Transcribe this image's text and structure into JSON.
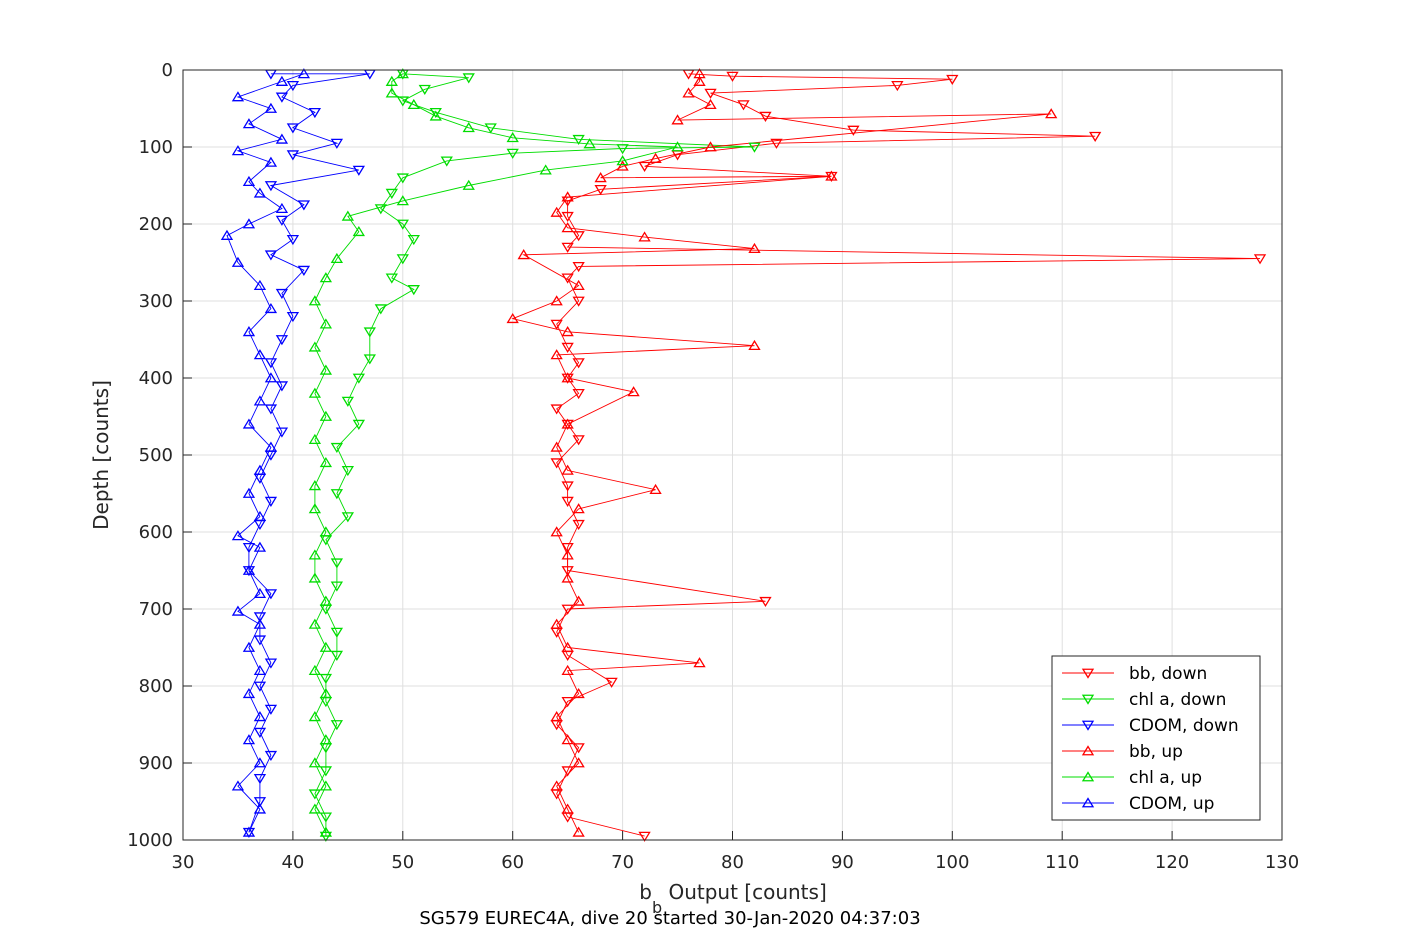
{
  "chart_data": {
    "type": "scatter",
    "title": "",
    "caption": "SG579 EUREC4A, dive 20 started 30-Jan-2020 04:37:03",
    "xlabel": "b_b Output [counts]",
    "xlabel_main": "b",
    "xlabel_sub": "b",
    "xlabel_rest": " Output [counts]",
    "ylabel": "Depth [counts]",
    "xlim": [
      30,
      130
    ],
    "ylim": [
      0,
      1000
    ],
    "y_reversed": true,
    "grid": true,
    "legend_position": "bottom-right",
    "x_ticks": [
      "30",
      "40",
      "50",
      "60",
      "70",
      "80",
      "90",
      "100",
      "110",
      "120",
      "130"
    ],
    "y_ticks": [
      "0",
      "100",
      "200",
      "300",
      "400",
      "500",
      "600",
      "700",
      "800",
      "900",
      "1000"
    ],
    "series": [
      {
        "name": "bb, down",
        "color": "#ff0000",
        "marker": "triangle-down",
        "points": [
          [
            76,
            5
          ],
          [
            80,
            8
          ],
          [
            100,
            12
          ],
          [
            95,
            20
          ],
          [
            78,
            30
          ],
          [
            81,
            45
          ],
          [
            83,
            60
          ],
          [
            91,
            78
          ],
          [
            113,
            86
          ],
          [
            84,
            95
          ],
          [
            75,
            110
          ],
          [
            72,
            125
          ],
          [
            89,
            138
          ],
          [
            68,
            155
          ],
          [
            65,
            170
          ],
          [
            65,
            190
          ],
          [
            66,
            215
          ],
          [
            65,
            230
          ],
          [
            128,
            245
          ],
          [
            66,
            255
          ],
          [
            65,
            270
          ],
          [
            66,
            300
          ],
          [
            64,
            330
          ],
          [
            65,
            360
          ],
          [
            66,
            380
          ],
          [
            65,
            400
          ],
          [
            66,
            420
          ],
          [
            64,
            440
          ],
          [
            65,
            460
          ],
          [
            66,
            480
          ],
          [
            64,
            510
          ],
          [
            65,
            540
          ],
          [
            65,
            560
          ],
          [
            66,
            590
          ],
          [
            65,
            620
          ],
          [
            65,
            650
          ],
          [
            83,
            690
          ],
          [
            65,
            700
          ],
          [
            64,
            730
          ],
          [
            65,
            760
          ],
          [
            69,
            795
          ],
          [
            65,
            820
          ],
          [
            64,
            850
          ],
          [
            66,
            880
          ],
          [
            65,
            910
          ],
          [
            64,
            940
          ],
          [
            65,
            970
          ],
          [
            72,
            995
          ]
        ]
      },
      {
        "name": "chl a, down",
        "color": "#00dd00",
        "marker": "triangle-down",
        "points": [
          [
            50,
            5
          ],
          [
            56,
            10
          ],
          [
            52,
            25
          ],
          [
            50,
            40
          ],
          [
            53,
            55
          ],
          [
            58,
            75
          ],
          [
            66,
            90
          ],
          [
            82,
            100
          ],
          [
            70,
            102
          ],
          [
            60,
            108
          ],
          [
            54,
            118
          ],
          [
            50,
            140
          ],
          [
            49,
            160
          ],
          [
            48,
            180
          ],
          [
            50,
            200
          ],
          [
            51,
            220
          ],
          [
            50,
            245
          ],
          [
            49,
            270
          ],
          [
            51,
            285
          ],
          [
            48,
            310
          ],
          [
            47,
            340
          ],
          [
            47,
            375
          ],
          [
            46,
            400
          ],
          [
            45,
            430
          ],
          [
            46,
            460
          ],
          [
            44,
            490
          ],
          [
            45,
            520
          ],
          [
            44,
            550
          ],
          [
            45,
            580
          ],
          [
            43,
            610
          ],
          [
            44,
            640
          ],
          [
            44,
            670
          ],
          [
            43,
            700
          ],
          [
            44,
            730
          ],
          [
            44,
            760
          ],
          [
            43,
            790
          ],
          [
            43,
            820
          ],
          [
            44,
            850
          ],
          [
            43,
            880
          ],
          [
            43,
            910
          ],
          [
            42,
            940
          ],
          [
            43,
            970
          ],
          [
            43,
            995
          ]
        ]
      },
      {
        "name": "CDOM, down",
        "color": "#0000ff",
        "marker": "triangle-down",
        "points": [
          [
            38,
            5
          ],
          [
            47,
            5
          ],
          [
            40,
            20
          ],
          [
            39,
            35
          ],
          [
            42,
            55
          ],
          [
            40,
            75
          ],
          [
            44,
            95
          ],
          [
            40,
            110
          ],
          [
            46,
            130
          ],
          [
            38,
            150
          ],
          [
            41,
            175
          ],
          [
            39,
            195
          ],
          [
            40,
            220
          ],
          [
            38,
            240
          ],
          [
            41,
            260
          ],
          [
            39,
            290
          ],
          [
            40,
            320
          ],
          [
            39,
            350
          ],
          [
            38,
            380
          ],
          [
            39,
            410
          ],
          [
            38,
            440
          ],
          [
            39,
            470
          ],
          [
            38,
            500
          ],
          [
            37,
            530
          ],
          [
            38,
            560
          ],
          [
            37,
            590
          ],
          [
            36,
            620
          ],
          [
            36,
            650
          ],
          [
            38,
            680
          ],
          [
            37,
            710
          ],
          [
            37,
            740
          ],
          [
            38,
            770
          ],
          [
            37,
            800
          ],
          [
            38,
            830
          ],
          [
            37,
            860
          ],
          [
            38,
            890
          ],
          [
            37,
            920
          ],
          [
            37,
            950
          ],
          [
            36,
            990
          ]
        ]
      },
      {
        "name": "bb, up",
        "color": "#ff0000",
        "marker": "triangle-up",
        "points": [
          [
            66,
            990
          ],
          [
            65,
            960
          ],
          [
            64,
            930
          ],
          [
            66,
            900
          ],
          [
            65,
            870
          ],
          [
            64,
            840
          ],
          [
            66,
            810
          ],
          [
            65,
            780
          ],
          [
            77,
            770
          ],
          [
            65,
            750
          ],
          [
            64,
            720
          ],
          [
            66,
            690
          ],
          [
            65,
            660
          ],
          [
            65,
            630
          ],
          [
            64,
            600
          ],
          [
            66,
            570
          ],
          [
            73,
            545
          ],
          [
            65,
            520
          ],
          [
            64,
            490
          ],
          [
            65,
            460
          ],
          [
            71,
            418
          ],
          [
            65,
            400
          ],
          [
            64,
            370
          ],
          [
            82,
            358
          ],
          [
            65,
            340
          ],
          [
            60,
            323
          ],
          [
            64,
            300
          ],
          [
            66,
            280
          ],
          [
            61,
            240
          ],
          [
            82,
            232
          ],
          [
            72,
            217
          ],
          [
            65,
            205
          ],
          [
            64,
            185
          ],
          [
            65,
            165
          ],
          [
            89,
            138
          ],
          [
            68,
            140
          ],
          [
            70,
            125
          ],
          [
            73,
            115
          ],
          [
            78,
            100
          ],
          [
            109,
            57
          ],
          [
            75,
            65
          ],
          [
            78,
            45
          ],
          [
            76,
            30
          ],
          [
            77,
            15
          ],
          [
            77,
            5
          ]
        ]
      },
      {
        "name": "chl a, up",
        "color": "#00dd00",
        "marker": "triangle-up",
        "points": [
          [
            43,
            990
          ],
          [
            42,
            960
          ],
          [
            43,
            930
          ],
          [
            42,
            900
          ],
          [
            43,
            870
          ],
          [
            42,
            840
          ],
          [
            43,
            810
          ],
          [
            42,
            780
          ],
          [
            43,
            750
          ],
          [
            42,
            720
          ],
          [
            43,
            690
          ],
          [
            42,
            660
          ],
          [
            42,
            630
          ],
          [
            43,
            600
          ],
          [
            42,
            570
          ],
          [
            42,
            540
          ],
          [
            43,
            510
          ],
          [
            42,
            480
          ],
          [
            43,
            450
          ],
          [
            42,
            420
          ],
          [
            43,
            390
          ],
          [
            42,
            360
          ],
          [
            43,
            330
          ],
          [
            42,
            300
          ],
          [
            43,
            270
          ],
          [
            44,
            245
          ],
          [
            46,
            210
          ],
          [
            45,
            190
          ],
          [
            50,
            170
          ],
          [
            56,
            150
          ],
          [
            63,
            130
          ],
          [
            70,
            118
          ],
          [
            75,
            100
          ],
          [
            67,
            96
          ],
          [
            60,
            88
          ],
          [
            56,
            75
          ],
          [
            53,
            60
          ],
          [
            51,
            45
          ],
          [
            49,
            30
          ],
          [
            49,
            15
          ],
          [
            50,
            5
          ]
        ]
      },
      {
        "name": "CDOM, up",
        "color": "#0000ff",
        "marker": "triangle-up",
        "points": [
          [
            36,
            990
          ],
          [
            37,
            960
          ],
          [
            35,
            930
          ],
          [
            37,
            900
          ],
          [
            36,
            870
          ],
          [
            37,
            840
          ],
          [
            36,
            810
          ],
          [
            37,
            780
          ],
          [
            36,
            750
          ],
          [
            37,
            720
          ],
          [
            35,
            703
          ],
          [
            37,
            680
          ],
          [
            36,
            650
          ],
          [
            37,
            620
          ],
          [
            35,
            605
          ],
          [
            37,
            580
          ],
          [
            36,
            550
          ],
          [
            37,
            520
          ],
          [
            38,
            490
          ],
          [
            36,
            460
          ],
          [
            37,
            430
          ],
          [
            38,
            400
          ],
          [
            37,
            370
          ],
          [
            36,
            340
          ],
          [
            38,
            310
          ],
          [
            37,
            280
          ],
          [
            35,
            250
          ],
          [
            34,
            215
          ],
          [
            36,
            200
          ],
          [
            39,
            180
          ],
          [
            37,
            160
          ],
          [
            36,
            145
          ],
          [
            38,
            120
          ],
          [
            35,
            105
          ],
          [
            39,
            90
          ],
          [
            36,
            70
          ],
          [
            38,
            50
          ],
          [
            35,
            35
          ],
          [
            39,
            15
          ],
          [
            41,
            5
          ]
        ]
      }
    ]
  }
}
